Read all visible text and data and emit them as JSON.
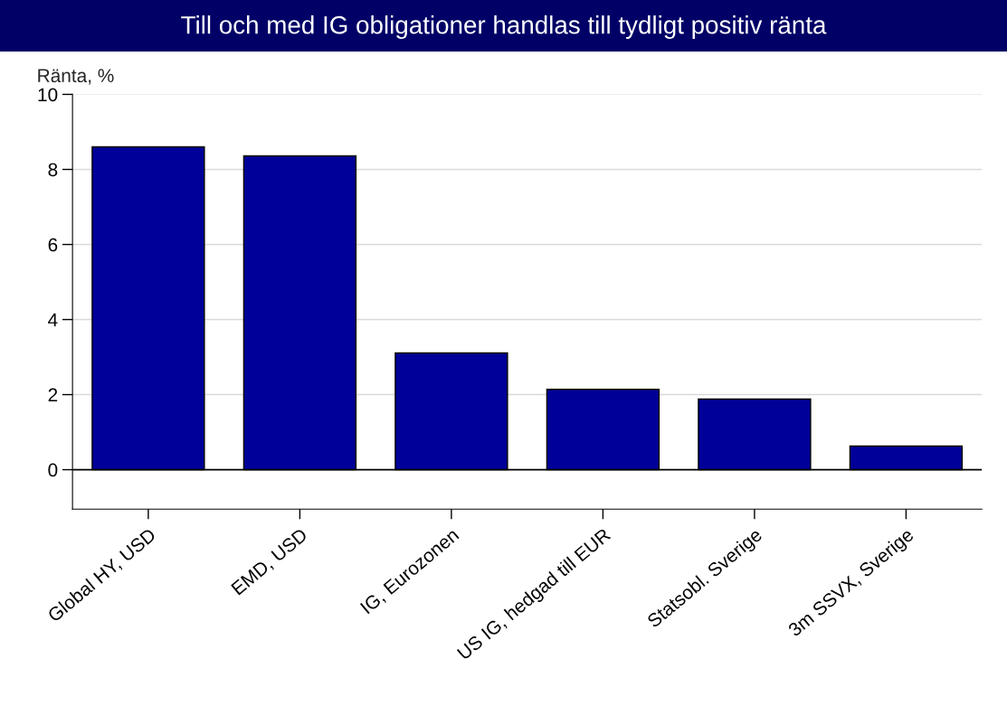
{
  "chart_data": {
    "type": "bar",
    "title": "Till och med IG obligationer handlas till tydligt positiv ränta",
    "ylabel": "Ränta, %",
    "categories": [
      "Global HY, USD",
      "EMD, USD",
      "IG, Eurozonen",
      "US IG, hedgad till EUR",
      "Statsobl. Sverige",
      "3m SSVX, Sverige"
    ],
    "values": [
      8.6,
      8.36,
      3.11,
      2.14,
      1.88,
      0.63
    ],
    "color": "#000099",
    "ylim": [
      -1.05,
      10
    ],
    "yticks": [
      0,
      2,
      4,
      6,
      8,
      10
    ],
    "ref_lines": [
      {
        "axis": "y",
        "value": 0,
        "color": "#000000"
      }
    ],
    "grid": "y",
    "legend": false
  }
}
